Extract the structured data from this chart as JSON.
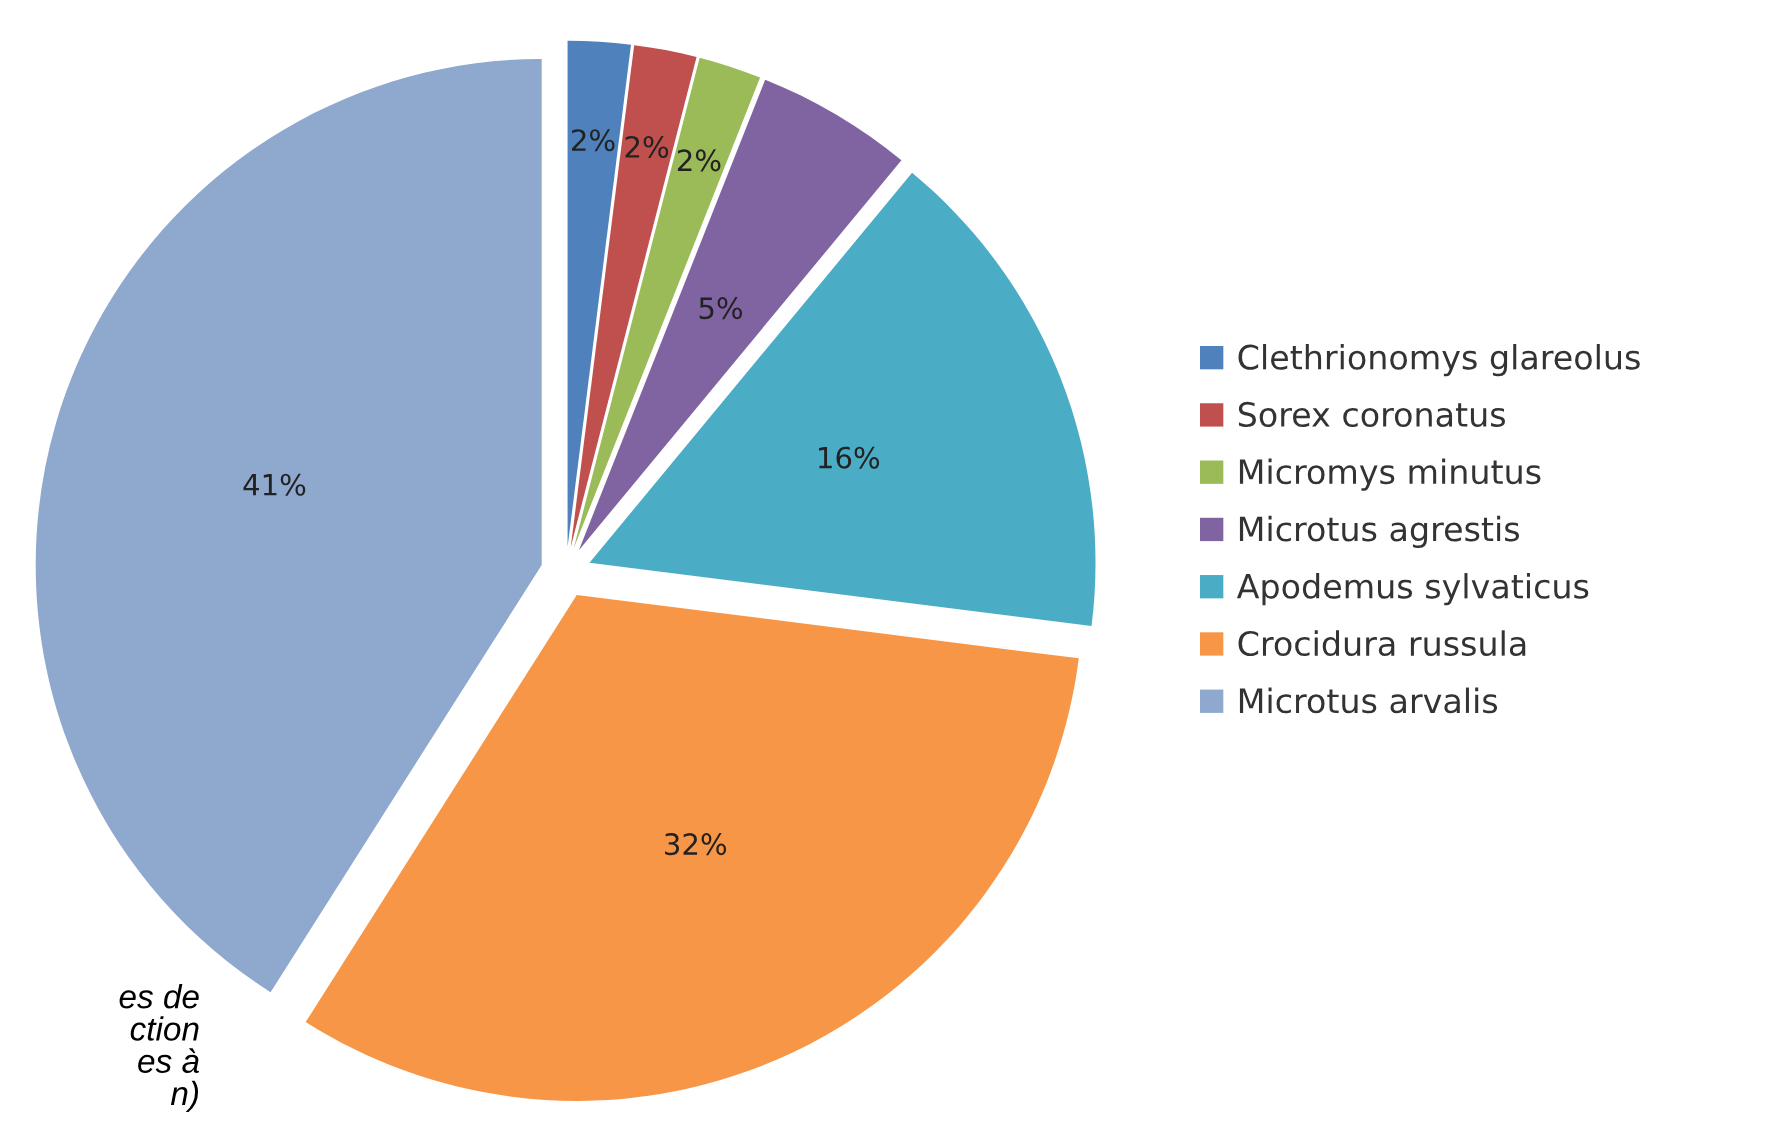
{
  "chart_data": {
    "type": "pie",
    "categories": [
      "Clethrionomys glareolus",
      "Sorex coronatus",
      "Micromys minutus",
      "Microtus agrestis",
      "Apodemus sylvaticus",
      "Crocidura russula",
      "Microtus arvalis"
    ],
    "values": [
      2,
      2,
      2,
      5,
      16,
      32,
      41
    ],
    "colors": [
      "#4f81bd",
      "#c0504d",
      "#9bbb59",
      "#8064a2",
      "#4bacc6",
      "#f79646",
      "#8fa8ce"
    ],
    "value_labels": [
      "2%",
      "2%",
      "2%",
      "5%",
      "16%",
      "32%",
      "41%"
    ],
    "legend": "right",
    "annotations": [
      "es de\nction\nes à\nn)"
    ]
  }
}
